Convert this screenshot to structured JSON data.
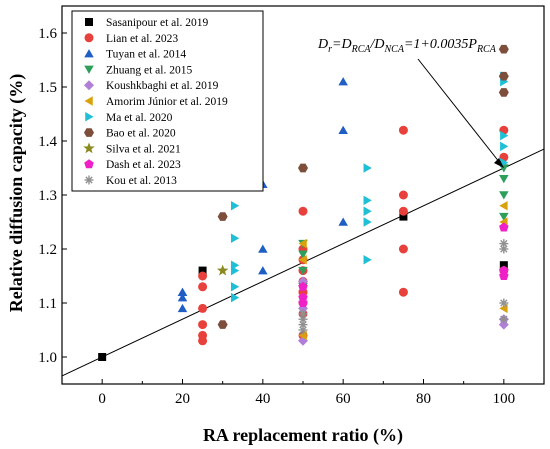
{
  "chart_data": {
    "type": "scatter",
    "xlabel": "RA replacement ratio  (%)",
    "ylabel": "Relative diffusion capacity  (%)",
    "xlim": [
      -10,
      110
    ],
    "ylim": [
      0.95,
      1.65
    ],
    "xticks": [
      "0",
      "20",
      "40",
      "60",
      "80",
      "100"
    ],
    "yticks": [
      "1.0",
      "1.1",
      "1.2",
      "1.3",
      "1.4",
      "1.5",
      "1.6"
    ],
    "grid": false,
    "legend_position": "top-left",
    "fit_line": {
      "intercept": 1.0,
      "slope": 0.0035
    },
    "equation": {
      "D1": "D",
      "s1": "r",
      "eq1": "=",
      "D2": "D",
      "s2": "RCA",
      "slash": "/",
      "D3": "D",
      "s3": "NCA",
      "eq2": "=1+0.0035",
      "P": "P",
      "s4": "RCA"
    },
    "series": [
      {
        "name": "Sasanipour et al. 2019",
        "marker": "square",
        "color": "#000000",
        "x": [
          0,
          25,
          75,
          100
        ],
        "y": [
          1.0,
          1.16,
          1.26,
          1.17
        ]
      },
      {
        "name": "Lian et al. 2023",
        "marker": "circle",
        "color": "#e8413c",
        "x": [
          25,
          25,
          25,
          25,
          25,
          25,
          50,
          50,
          50,
          50,
          50,
          50,
          50,
          50,
          50,
          50,
          75,
          75,
          75,
          75,
          75,
          100,
          100,
          100
        ],
        "y": [
          1.03,
          1.04,
          1.06,
          1.09,
          1.13,
          1.15,
          1.04,
          1.08,
          1.1,
          1.12,
          1.14,
          1.16,
          1.18,
          1.2,
          1.27,
          1.12,
          1.12,
          1.2,
          1.27,
          1.3,
          1.42,
          1.37,
          1.42,
          1.16
        ]
      },
      {
        "name": "Tuyan et al. 2014",
        "marker": "triangle-up",
        "color": "#1f5fc4",
        "x": [
          20,
          20,
          20,
          20,
          40,
          40,
          40,
          60,
          60,
          60
        ],
        "y": [
          1.09,
          1.11,
          1.12,
          1.12,
          1.16,
          1.2,
          1.32,
          1.25,
          1.42,
          1.51
        ]
      },
      {
        "name": "Zhuang et al. 2015",
        "marker": "triangle-down",
        "color": "#2e9e5b",
        "x": [
          50,
          50,
          50,
          50,
          100,
          100,
          100,
          100
        ],
        "y": [
          1.13,
          1.16,
          1.19,
          1.21,
          1.26,
          1.3,
          1.33,
          1.35
        ]
      },
      {
        "name": "Koushkbaghi et al. 2019",
        "marker": "diamond",
        "color": "#b07fd8",
        "x": [
          50,
          50,
          50,
          100,
          100
        ],
        "y": [
          1.03,
          1.09,
          1.14,
          1.06,
          1.07
        ]
      },
      {
        "name": "Amorim Júnior et al. 2019",
        "marker": "triangle-left",
        "color": "#d9a20a",
        "x": [
          50,
          50,
          50,
          100,
          100,
          100
        ],
        "y": [
          1.04,
          1.18,
          1.21,
          1.09,
          1.25,
          1.28
        ]
      },
      {
        "name": "Ma et al. 2020",
        "marker": "triangle-right",
        "color": "#1fc0d6",
        "x": [
          33,
          33,
          33,
          33,
          33,
          33,
          66,
          66,
          66,
          66,
          66,
          100,
          100,
          100,
          100,
          100
        ],
        "y": [
          1.11,
          1.13,
          1.16,
          1.17,
          1.22,
          1.28,
          1.18,
          1.25,
          1.27,
          1.29,
          1.35,
          1.36,
          1.39,
          1.41,
          1.51,
          1.52
        ]
      },
      {
        "name": "Bao et al. 2020",
        "marker": "hexagon",
        "color": "#7d4e3c",
        "x": [
          30,
          30,
          50,
          100,
          100,
          100
        ],
        "y": [
          1.06,
          1.26,
          1.35,
          1.49,
          1.52,
          1.57
        ]
      },
      {
        "name": "Silva et al. 2021",
        "marker": "star",
        "color": "#8a8a1e",
        "x": [
          30
        ],
        "y": [
          1.16
        ]
      },
      {
        "name": "Dash et al. 2023",
        "marker": "pentagon",
        "color": "#f020c8",
        "x": [
          50,
          50,
          50,
          100,
          100,
          100
        ],
        "y": [
          1.1,
          1.11,
          1.13,
          1.15,
          1.16,
          1.24
        ]
      },
      {
        "name": "Kou et al. 2013",
        "marker": "asterisk",
        "color": "#909090",
        "x": [
          50,
          50,
          50,
          50,
          100,
          100,
          100,
          100
        ],
        "y": [
          1.05,
          1.06,
          1.07,
          1.08,
          1.07,
          1.1,
          1.2,
          1.21
        ]
      }
    ]
  }
}
